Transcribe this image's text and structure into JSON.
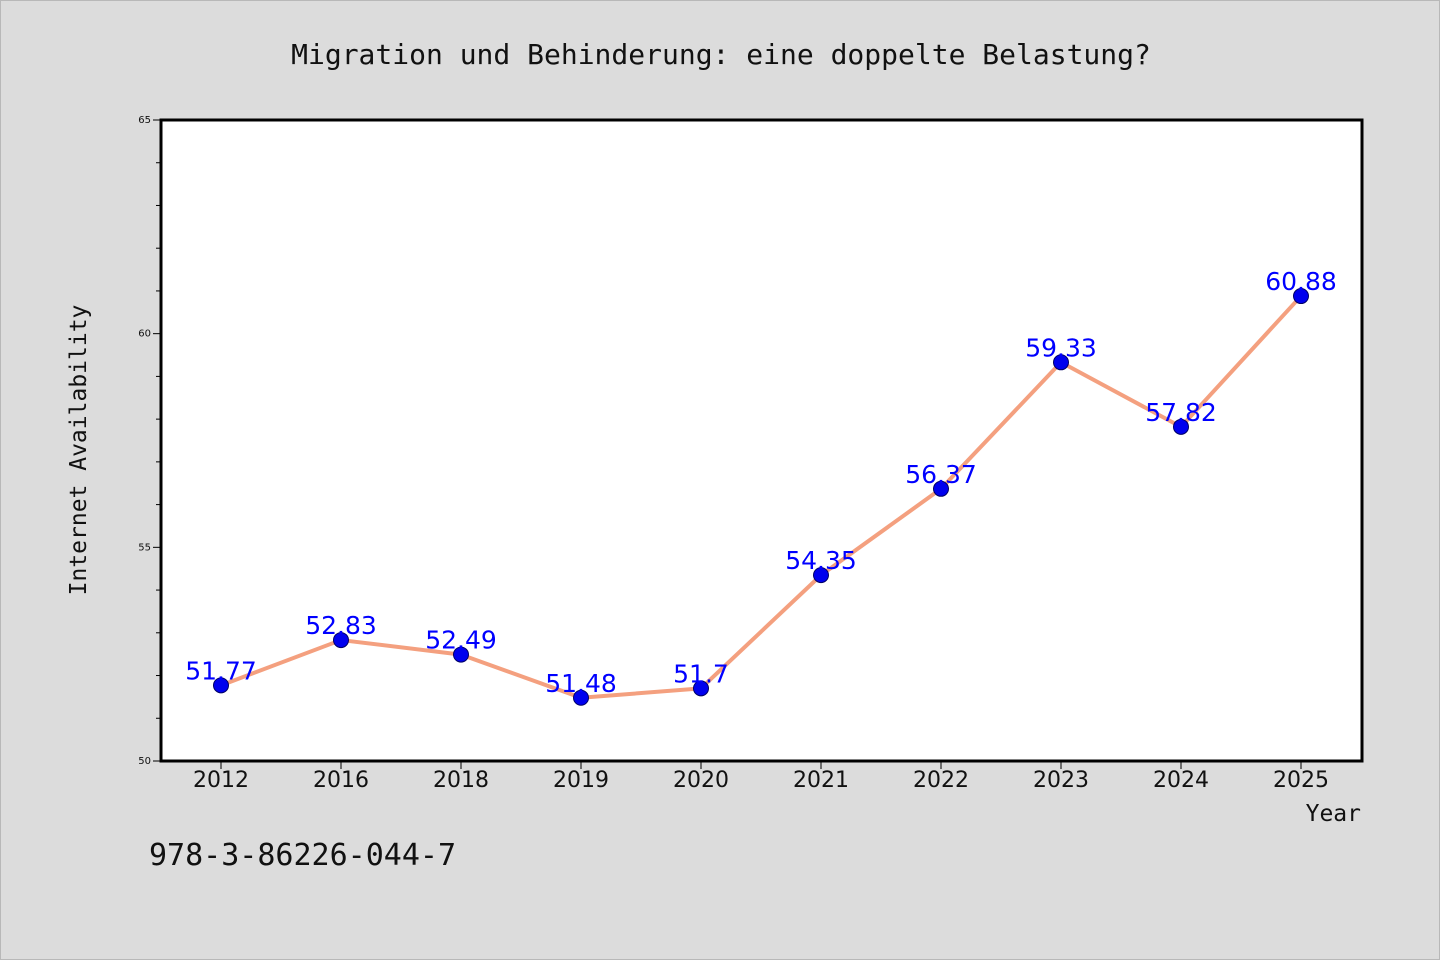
{
  "chart_data": {
    "type": "line",
    "title": "Migration und Behinderung: eine doppelte Belastung?",
    "xlabel": "Year",
    "ylabel": "Internet Availability",
    "categories": [
      "2012",
      "2016",
      "2018",
      "2019",
      "2020",
      "2021",
      "2022",
      "2023",
      "2024",
      "2025"
    ],
    "series": [
      {
        "values": [
          51.77,
          52.83,
          52.49,
          51.48,
          51.7,
          54.35,
          56.37,
          59.33,
          57.82,
          60.88
        ]
      }
    ],
    "data_labels": [
      "51.77",
      "52.83",
      "52.49",
      "51.48",
      "51.7",
      "54.35",
      "56.37",
      "59.33",
      "57.82",
      "60.88"
    ],
    "ylim": [
      50,
      65
    ],
    "y_ticks": [
      50,
      55,
      60,
      65
    ],
    "y_tick_labels": [
      "50",
      "55",
      "60",
      "65"
    ],
    "y_minor_step": 1,
    "grid": false,
    "line_color": "#f4a07f",
    "marker_color": "#0000ee",
    "label_color": "#0000ff"
  },
  "note": "978-3-86226-044-7"
}
